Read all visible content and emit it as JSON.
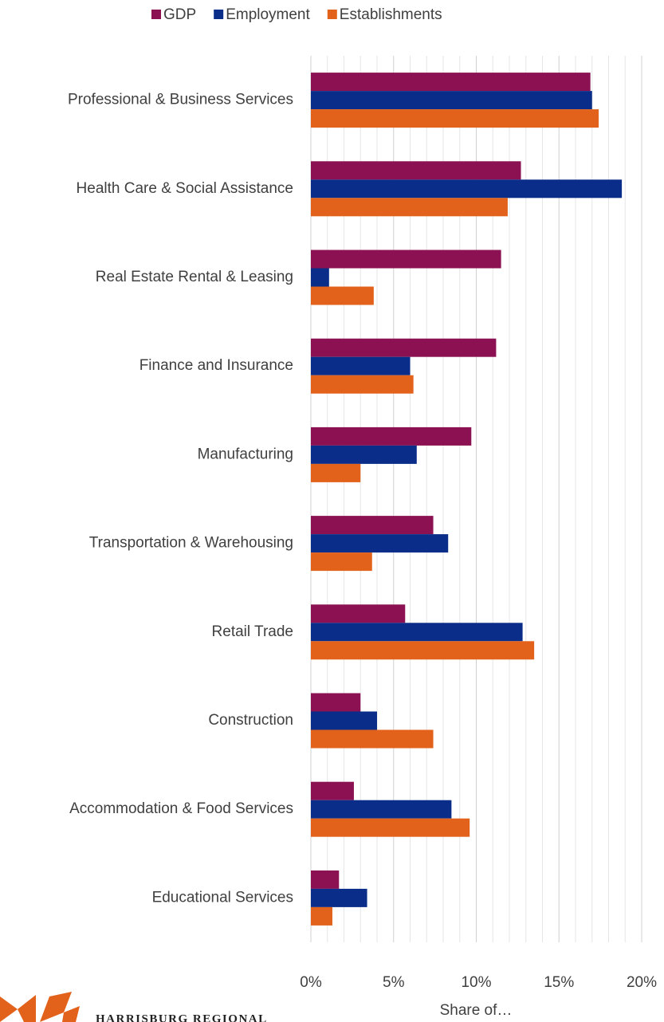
{
  "chart_data": {
    "type": "hbar",
    "categories": [
      "Professional & Business Services",
      "Health Care &  Social Assistance",
      "Real Estate Rental & Leasing",
      "Finance and Insurance",
      "Manufacturing",
      "Transportation & Warehousing",
      "Retail Trade",
      "Construction",
      "Accommodation & Food Services",
      "Educational Services"
    ],
    "series": [
      {
        "name": "GDP",
        "color": "#8b1153",
        "values": [
          16.9,
          12.7,
          11.5,
          11.2,
          9.7,
          7.4,
          5.7,
          3.0,
          2.6,
          1.7
        ]
      },
      {
        "name": "Employment",
        "color": "#0a2d8a",
        "values": [
          17.0,
          18.8,
          1.1,
          6.0,
          6.4,
          8.3,
          12.8,
          4.0,
          8.5,
          3.4
        ]
      },
      {
        "name": "Establishments",
        "color": "#e2621b",
        "values": [
          17.4,
          11.9,
          3.8,
          6.2,
          3.0,
          3.7,
          13.5,
          7.4,
          9.6,
          1.3
        ]
      }
    ],
    "x_label": "Share of…",
    "xlim": [
      0,
      20
    ],
    "xticks": [
      {
        "value": 0,
        "label": "0%"
      },
      {
        "value": 5,
        "label": "5%"
      },
      {
        "value": 10,
        "label": "10%"
      },
      {
        "value": 15,
        "label": "15%"
      },
      {
        "value": 20,
        "label": "20%"
      }
    ],
    "minor_xticks": [
      1,
      2,
      3,
      4,
      6,
      7,
      8,
      9,
      11,
      12,
      13,
      14,
      16,
      17,
      18,
      19
    ],
    "grid": true,
    "legend": "top"
  },
  "logo": {
    "text": "HARRISBURG REGIONAL"
  }
}
